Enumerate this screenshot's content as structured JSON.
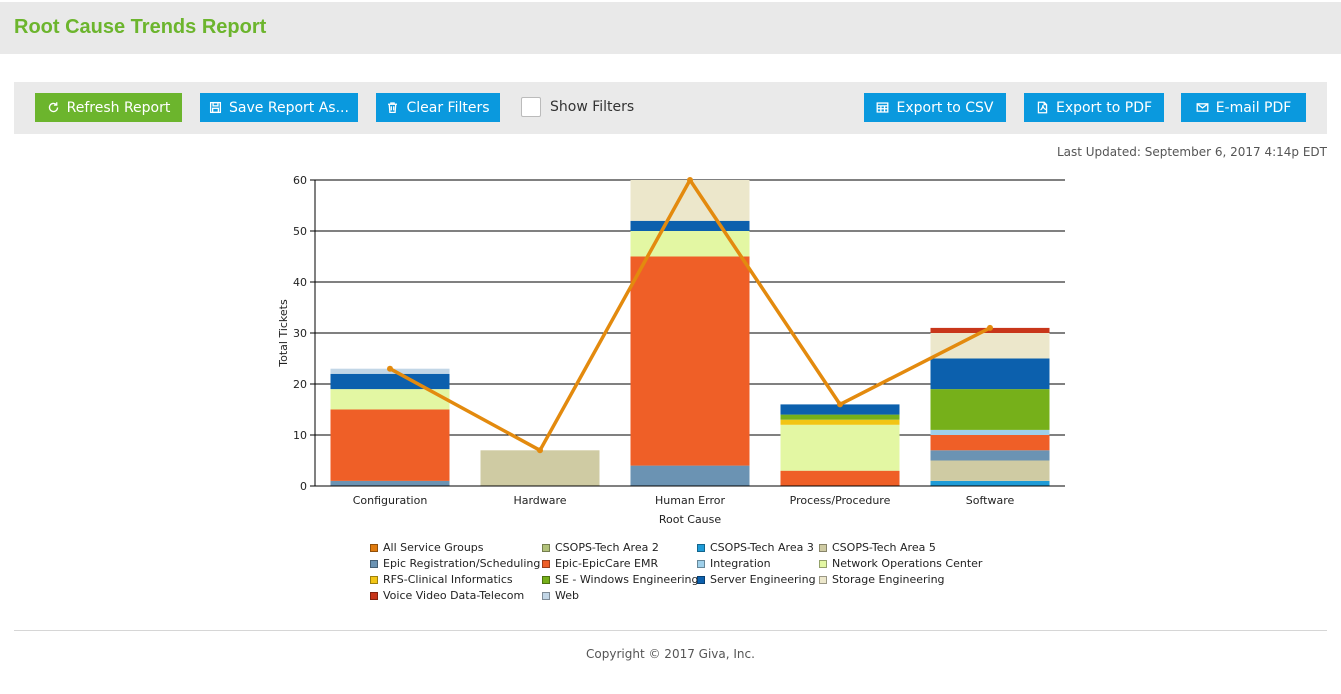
{
  "header": {
    "title": "Root Cause Trends Report"
  },
  "toolbar": {
    "refresh_label": "Refresh Report",
    "save_label": "Save Report As...",
    "clear_label": "Clear Filters",
    "show_filters_label": "Show Filters",
    "export_csv_label": "Export to CSV",
    "export_pdf_label": "Export to PDF",
    "email_pdf_label": "E-mail PDF"
  },
  "last_updated": "Last Updated: September 6, 2017 4:14p EDT",
  "footer": {
    "copyright": "Copyright © 2017 Giva, Inc."
  },
  "colors": {
    "accent_green": "#6cb52d",
    "button_blue": "#0a99de",
    "line": "#e38a0e"
  },
  "chart_data": {
    "type": "bar",
    "stacked": true,
    "xlabel": "Root Cause",
    "ylabel": "Total Tickets",
    "ylim": [
      0,
      60
    ],
    "yticks": [
      0,
      10,
      20,
      30,
      40,
      50,
      60
    ],
    "grid": true,
    "legend_position": "bottom",
    "categories": [
      "Configuration",
      "Hardware",
      "Human Error",
      "Process/Procedure",
      "Software"
    ],
    "series": [
      {
        "name": "All Service Groups",
        "color": "#e07b0e",
        "values": [
          0,
          0,
          0,
          0,
          0
        ]
      },
      {
        "name": "CSOPS-Tech Area 2",
        "color": "#b2c27a",
        "values": [
          0,
          0,
          0,
          0,
          0
        ]
      },
      {
        "name": "CSOPS-Tech Area 3",
        "color": "#1e9bd7",
        "values": [
          0,
          0,
          0,
          0,
          1
        ]
      },
      {
        "name": "CSOPS-Tech Area 5",
        "color": "#cfcba3",
        "values": [
          0,
          7,
          0,
          0,
          4
        ]
      },
      {
        "name": "Epic Registration/Scheduling",
        "color": "#6b93b3",
        "values": [
          1,
          0,
          4,
          0,
          2
        ]
      },
      {
        "name": "Epic-EpicCare EMR",
        "color": "#ef5f27",
        "values": [
          14,
          0,
          41,
          3,
          3
        ]
      },
      {
        "name": "Integration",
        "color": "#9fd0ea",
        "values": [
          0,
          0,
          0,
          0,
          1
        ]
      },
      {
        "name": "Network Operations Center",
        "color": "#e3f7a3",
        "values": [
          4,
          0,
          5,
          9,
          0
        ]
      },
      {
        "name": "RFS-Clinical Informatics",
        "color": "#f2c515",
        "values": [
          0,
          0,
          0,
          1,
          0
        ]
      },
      {
        "name": "SE - Windows Engineering",
        "color": "#76b01a",
        "values": [
          0,
          0,
          0,
          1,
          8
        ]
      },
      {
        "name": "Server Engineering",
        "color": "#0c60ad",
        "values": [
          3,
          0,
          2,
          2,
          6
        ]
      },
      {
        "name": "Storage Engineering",
        "color": "#ece7cb",
        "values": [
          0,
          0,
          8,
          0,
          5
        ]
      },
      {
        "name": "Voice Video Data-Telecom",
        "color": "#c8361a",
        "values": [
          0,
          0,
          0,
          0,
          1
        ]
      },
      {
        "name": "Web",
        "color": "#c2d6e6",
        "values": [
          1,
          0,
          0,
          0,
          0
        ]
      }
    ],
    "line": {
      "color": "#e38a0e",
      "values": [
        23,
        7,
        60,
        16,
        31
      ]
    }
  }
}
